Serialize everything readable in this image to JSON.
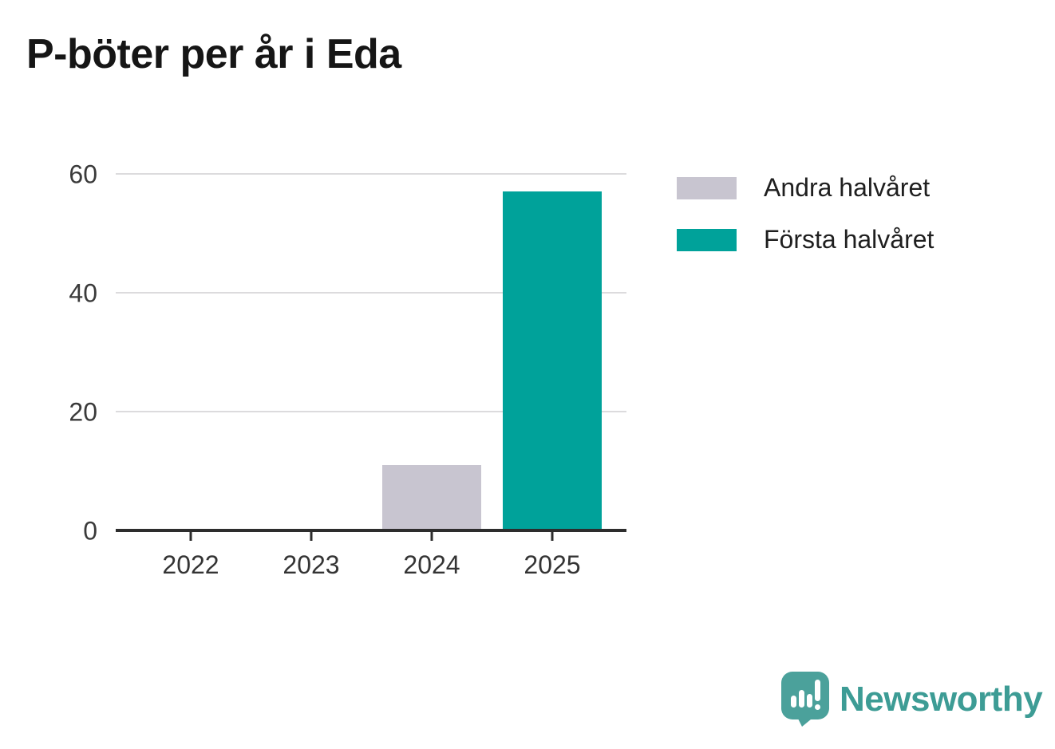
{
  "title": "P-böter per år i Eda",
  "chart_data": {
    "type": "bar",
    "stacked": true,
    "title": "P-böter per år i Eda",
    "categories": [
      "2022",
      "2023",
      "2024",
      "2025"
    ],
    "series": [
      {
        "name": "Andra halvåret",
        "color": "#c8c5d0",
        "values": [
          0,
          0,
          11,
          0
        ]
      },
      {
        "name": "Första halvåret",
        "color": "#00a29a",
        "values": [
          0,
          0,
          0,
          57
        ]
      }
    ],
    "xlabel": "",
    "ylabel": "",
    "ylim": [
      0,
      60
    ],
    "yticks": [
      0,
      20,
      40,
      60
    ],
    "grid": true,
    "legend_position": "top-right"
  },
  "legend": {
    "items": [
      {
        "label": "Andra halvåret",
        "color": "#c8c5d0"
      },
      {
        "label": "Första halvåret",
        "color": "#00a29a"
      }
    ]
  },
  "branding": {
    "logo_text": "Newsworthy",
    "logo_color": "#3d9c95",
    "icon_color": "#4ba19b",
    "logo_icon": "newsworthy-speech-bubble-bar-chart-icon"
  }
}
